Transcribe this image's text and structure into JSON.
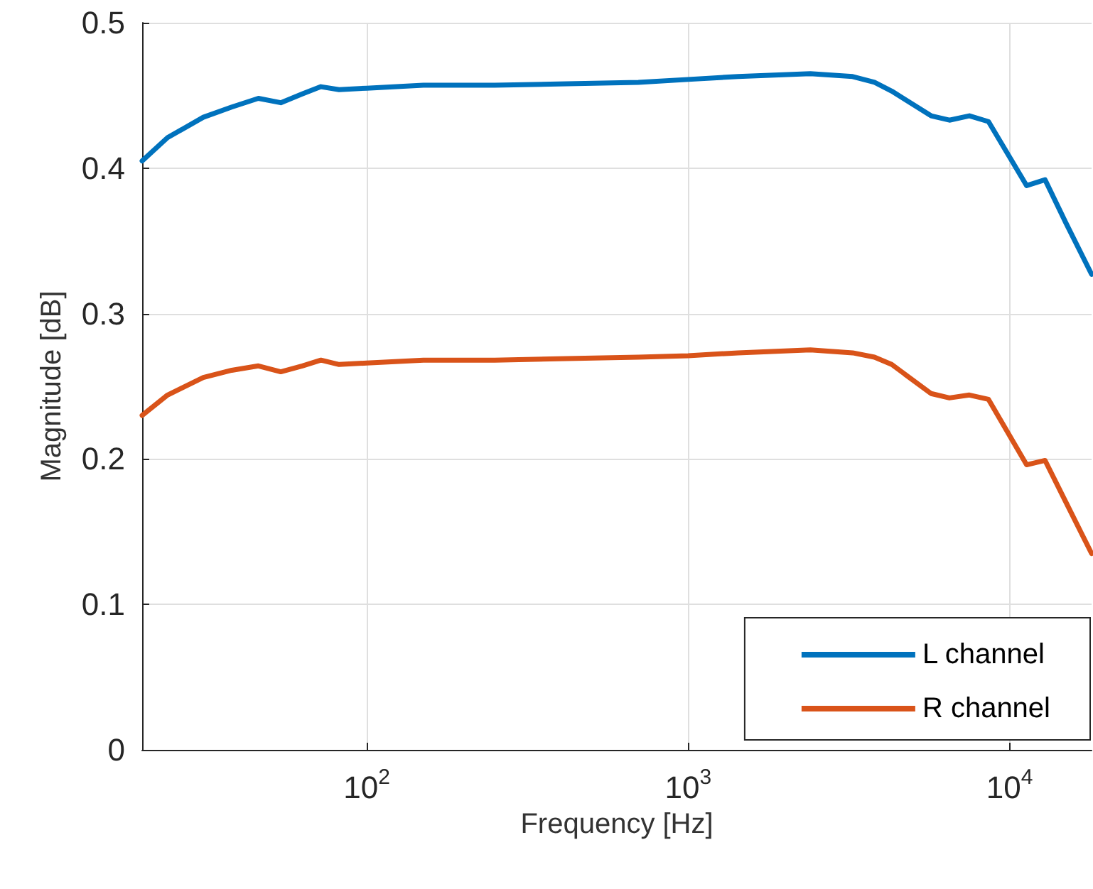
{
  "chart_data": {
    "type": "line",
    "xlabel": "Frequency [Hz]",
    "ylabel": "Magnitude [dB]",
    "x": [
      20,
      24,
      31,
      38,
      46,
      54,
      63,
      72,
      82,
      100,
      150,
      250,
      420,
      700,
      1000,
      1430,
      2400,
      3250,
      3800,
      4300,
      5700,
      6500,
      7500,
      8600,
      11300,
      12900,
      15000,
      18000
    ],
    "series": [
      {
        "name": "L channel",
        "color": "#0072bd",
        "values": [
          0.405,
          0.421,
          0.435,
          0.442,
          0.448,
          0.445,
          0.451,
          0.456,
          0.454,
          0.455,
          0.457,
          0.457,
          0.458,
          0.459,
          0.461,
          0.463,
          0.465,
          0.463,
          0.459,
          0.453,
          0.436,
          0.433,
          0.436,
          0.432,
          0.388,
          0.392,
          0.362,
          0.327
        ]
      },
      {
        "name": "R channel",
        "color": "#d95319",
        "values": [
          0.23,
          0.244,
          0.256,
          0.261,
          0.264,
          0.26,
          0.264,
          0.268,
          0.265,
          0.266,
          0.268,
          0.268,
          0.269,
          0.27,
          0.271,
          0.273,
          0.275,
          0.273,
          0.27,
          0.265,
          0.245,
          0.242,
          0.244,
          0.241,
          0.196,
          0.199,
          0.17,
          0.135
        ]
      }
    ],
    "log": "x",
    "xlim": [
      20,
      18000
    ],
    "xticks": [
      {
        "value": 100,
        "label": "10$^{2}$"
      },
      {
        "value": 1000,
        "label": "10$^{3}$"
      },
      {
        "value": 10000,
        "label": "10$^{4}$"
      }
    ],
    "ylim": [
      0,
      0.5
    ],
    "yticks": [
      0,
      0.1,
      0.2,
      0.3,
      0.4,
      0.5
    ],
    "grid": true,
    "legend": "bottom right",
    "marker": "none",
    "line_style": "solid"
  }
}
